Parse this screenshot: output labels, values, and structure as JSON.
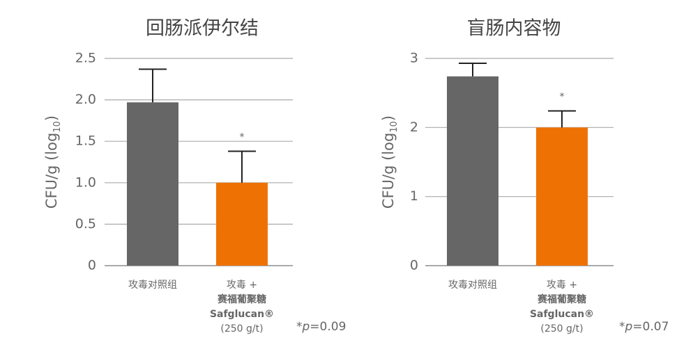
{
  "chart_data": [
    {
      "type": "bar",
      "title": "回肠派伊尔结",
      "ylabel_parts": [
        "CFU/g (log",
        "10",
        ")"
      ],
      "categories": [
        [
          "攻毒对照组"
        ],
        [
          "攻毒 +",
          "赛福葡聚糖",
          "Safglucan®",
          "(250 g/t)"
        ]
      ],
      "values": [
        1.97,
        1.0
      ],
      "errors": [
        0.4,
        0.38
      ],
      "colors": [
        "#666666",
        "#ee7203"
      ],
      "sig_labels": [
        null,
        "*"
      ],
      "ylim": [
        0,
        2.5
      ],
      "yticks": [
        0,
        0.5,
        {
          "value": 1,
          "label": "1.0"
        },
        1.5,
        {
          "value": 2,
          "label": "2.0"
        },
        2.5
      ],
      "grid": true,
      "footnote_parts": [
        "*",
        "p",
        "=0.09"
      ]
    },
    {
      "type": "bar",
      "title": "盲肠内容物",
      "ylabel_parts": [
        "CFU/g (log",
        "10",
        ")"
      ],
      "categories": [
        [
          "攻毒对照组"
        ],
        [
          "攻毒 +",
          "赛福葡聚糖",
          "Safglucan®",
          "(250 g/t)"
        ]
      ],
      "values": [
        2.74,
        2.0
      ],
      "errors": [
        0.19,
        0.24
      ],
      "colors": [
        "#666666",
        "#ee7203"
      ],
      "sig_labels": [
        null,
        "*"
      ],
      "ylim": [
        0,
        3
      ],
      "yticks": [
        0,
        1,
        2,
        3
      ],
      "grid": true,
      "footnote_parts": [
        "*",
        "p",
        "=0.07"
      ]
    }
  ]
}
